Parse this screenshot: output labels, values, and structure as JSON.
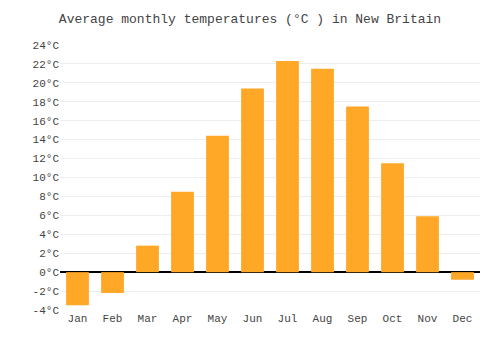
{
  "chart_data": {
    "type": "bar",
    "title": "Average monthly temperatures (°C ) in New Britain",
    "categories": [
      "Jan",
      "Feb",
      "Mar",
      "Apr",
      "May",
      "Jun",
      "Jul",
      "Aug",
      "Sep",
      "Oct",
      "Nov",
      "Dec"
    ],
    "values": [
      -3.5,
      -2.2,
      2.8,
      8.5,
      14.4,
      19.4,
      22.3,
      21.5,
      17.5,
      11.5,
      5.9,
      -0.8
    ],
    "color": "#FFA726",
    "ylim": [
      -4,
      24
    ],
    "yticks": [
      {
        "value": -4,
        "label": "-4°C"
      },
      {
        "value": -2,
        "label": "-2°C"
      },
      {
        "value": 0,
        "label": "0°C"
      },
      {
        "value": 2,
        "label": "2°C"
      },
      {
        "value": 4,
        "label": "4°C"
      },
      {
        "value": 6,
        "label": "6°C"
      },
      {
        "value": 8,
        "label": "8°C"
      },
      {
        "value": 10,
        "label": "10°C"
      },
      {
        "value": 12,
        "label": "12°C"
      },
      {
        "value": 14,
        "label": "14°C"
      },
      {
        "value": 16,
        "label": "16°C"
      },
      {
        "value": 18,
        "label": "18°C"
      },
      {
        "value": 20,
        "label": "20°C"
      },
      {
        "value": 22,
        "label": "22°C"
      },
      {
        "value": 24,
        "label": "24°C"
      }
    ],
    "grid": true
  }
}
